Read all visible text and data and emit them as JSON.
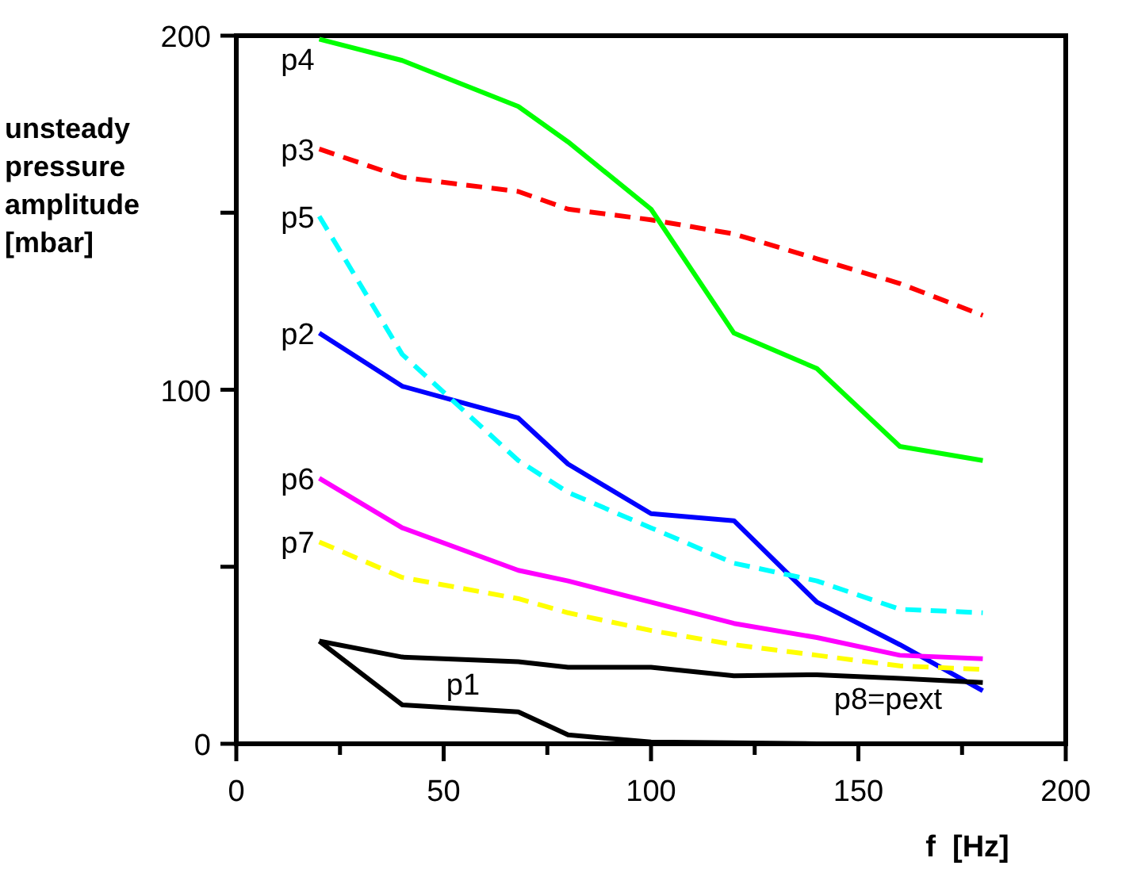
{
  "chart_data": {
    "type": "line",
    "xlabel": "f  [Hz]",
    "ylabel": "unsteady\npressure\namplitude\n[mbar]",
    "x": [
      20,
      40,
      68,
      80,
      100,
      120,
      140,
      160,
      180
    ],
    "xlim": [
      0,
      200
    ],
    "xticks": [
      0,
      {
        "value": 25,
        "label": null
      },
      50,
      {
        "value": 75,
        "label": null
      },
      100,
      {
        "value": 125,
        "label": null
      },
      150,
      {
        "value": 175,
        "label": null
      },
      200
    ],
    "ylim": [
      0,
      200
    ],
    "yticks": [
      0,
      {
        "value": 50,
        "label": null
      },
      100,
      {
        "value": 150,
        "label": null
      },
      200
    ],
    "grid": false,
    "marker": "none",
    "series": [
      {
        "color": "#000000",
        "line_style": "solid",
        "values": [
          29,
          11,
          9,
          2.5,
          0.5,
          0.3,
          0,
          null,
          null
        ]
      },
      {
        "name": "p2",
        "color": "#0000ff",
        "line_style": "solid",
        "values": [
          116,
          101,
          92,
          79,
          65,
          63,
          40,
          28,
          15
        ]
      },
      {
        "name": "p3",
        "color": "#ff0000",
        "line_style": "dashed",
        "values": [
          168,
          160,
          156,
          151,
          148,
          144,
          137,
          130,
          121
        ]
      },
      {
        "name": "p4",
        "color": "#00ff00",
        "line_style": "solid",
        "values": [
          199,
          193,
          180,
          170,
          151,
          116,
          106,
          84,
          80
        ]
      },
      {
        "name": "p5",
        "color": "#00ffff",
        "line_style": "dashed",
        "values": [
          149,
          110,
          80,
          71,
          61,
          51,
          46,
          38,
          37
        ]
      },
      {
        "name": "p6",
        "color": "#ff00ff",
        "line_style": "solid",
        "values": [
          75,
          61,
          49,
          46,
          40,
          34,
          30,
          25,
          24
        ]
      },
      {
        "name": "p7",
        "color": "#ffff00",
        "line_style": "dashed",
        "values": [
          57,
          47,
          41,
          37,
          32,
          28,
          25,
          22,
          21
        ]
      },
      {
        "color": "#000000",
        "line_style": "solid",
        "values": [
          29,
          24.5,
          23.2,
          21.6,
          21.6,
          19.2,
          19.5,
          18.5,
          17.3
        ]
      }
    ],
    "annotations": [
      "p1",
      "p8=pext"
    ]
  }
}
